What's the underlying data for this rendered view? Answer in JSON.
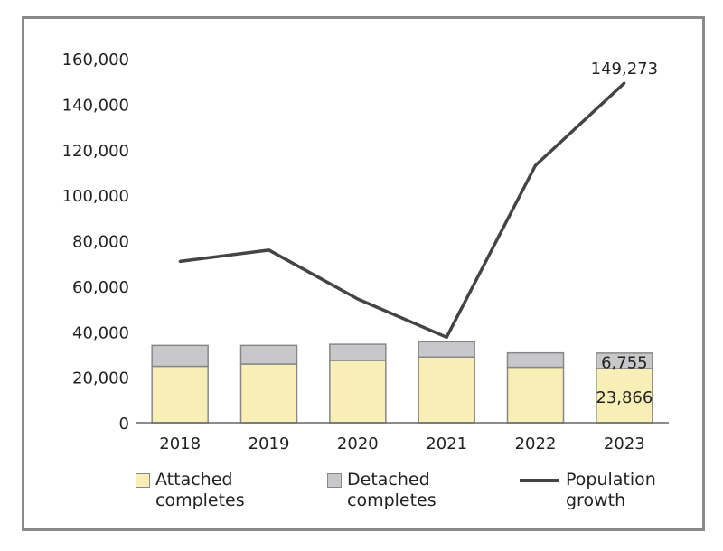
{
  "chart_data": {
    "type": "bar+line",
    "categories": [
      "2018",
      "2019",
      "2020",
      "2021",
      "2022",
      "2023"
    ],
    "ylim": [
      0,
      160000
    ],
    "yticks": [
      "0",
      "20,000",
      "40,000",
      "60,000",
      "80,000",
      "100,000",
      "120,000",
      "140,000",
      "160,000"
    ],
    "grid": false,
    "legend_placement": "bottom",
    "series": [
      {
        "name": "Attached completes",
        "type": "stacked-bar",
        "color": "#f8efb6",
        "values": [
          24800,
          25800,
          27400,
          28900,
          24400,
          23866
        ]
      },
      {
        "name": "Detached completes",
        "type": "stacked-bar",
        "color": "#c8c8ca",
        "values": [
          9200,
          8200,
          7100,
          6700,
          6300,
          6755
        ]
      },
      {
        "name": "Population growth",
        "type": "line",
        "color": "#444444",
        "values": [
          70900,
          75900,
          54400,
          37600,
          113100,
          149273
        ]
      }
    ],
    "data_labels": {
      "attached_2023": "23,866",
      "detached_2023": "6,755",
      "population_2023": "149,273"
    },
    "legend": {
      "attached": [
        "Attached",
        "completes"
      ],
      "detached": [
        "Detached",
        "completes"
      ],
      "population": [
        "Population",
        "growth"
      ]
    }
  }
}
